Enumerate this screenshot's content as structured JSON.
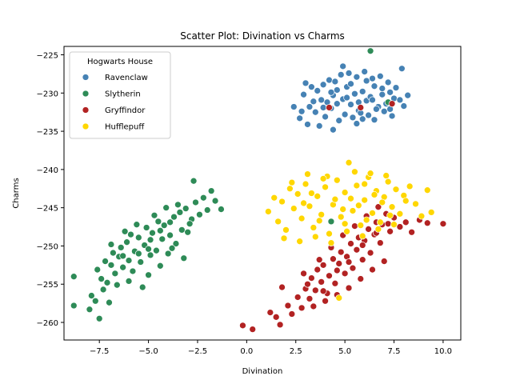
{
  "chart_data": {
    "type": "scatter",
    "title": "Scatter Plot: Divination vs Charms",
    "xlabel": "Divination",
    "ylabel": "Charms",
    "xlim": [
      -9.3,
      10.9
    ],
    "ylim": [
      -262.3,
      -223.9
    ],
    "xticks": [
      -7.5,
      -5.0,
      -2.5,
      0.0,
      2.5,
      5.0,
      7.5,
      10.0
    ],
    "xtick_labels": [
      "−7.5",
      "−5.0",
      "−2.5",
      "0.0",
      "2.5",
      "5.0",
      "7.5",
      "10.0"
    ],
    "yticks": [
      -225,
      -230,
      -235,
      -240,
      -245,
      -250,
      -255,
      -260
    ],
    "ytick_labels": [
      "−225",
      "−230",
      "−235",
      "−240",
      "−245",
      "−250",
      "−255",
      "−260"
    ],
    "grid": false,
    "legend": {
      "title": "Hogwarts House",
      "placement": "top-left"
    },
    "series": [
      {
        "name": "Ravenclaw",
        "color": "#4682b4",
        "points": [
          [
            3.2,
            -231.8
          ],
          [
            3.5,
            -232.5
          ],
          [
            3.8,
            -230.9
          ],
          [
            4.1,
            -231.2
          ],
          [
            4.4,
            -230.3
          ],
          [
            4.6,
            -229.6
          ],
          [
            4.9,
            -230.8
          ],
          [
            5.1,
            -229.2
          ],
          [
            5.3,
            -231.5
          ],
          [
            5.5,
            -230.1
          ],
          [
            5.7,
            -232.3
          ],
          [
            5.9,
            -229.8
          ],
          [
            6.1,
            -231.0
          ],
          [
            6.3,
            -230.5
          ],
          [
            6.5,
            -229.1
          ],
          [
            6.7,
            -231.8
          ],
          [
            6.9,
            -230.2
          ],
          [
            7.1,
            -231.4
          ],
          [
            7.3,
            -229.9
          ],
          [
            7.5,
            -230.7
          ],
          [
            3.6,
            -229.7
          ],
          [
            4.0,
            -233.1
          ],
          [
            4.3,
            -232.0
          ],
          [
            4.7,
            -233.6
          ],
          [
            5.0,
            -232.8
          ],
          [
            5.4,
            -233.2
          ],
          [
            5.8,
            -232.6
          ],
          [
            6.2,
            -232.9
          ],
          [
            6.6,
            -232.1
          ],
          [
            7.0,
            -232.4
          ],
          [
            2.4,
            -231.8
          ],
          [
            2.7,
            -233.3
          ],
          [
            2.9,
            -230.2
          ],
          [
            3.0,
            -228.7
          ],
          [
            3.3,
            -229.2
          ],
          [
            3.9,
            -228.9
          ],
          [
            4.2,
            -228.3
          ],
          [
            4.5,
            -228.5
          ],
          [
            4.8,
            -227.6
          ],
          [
            5.2,
            -227.4
          ],
          [
            5.6,
            -227.9
          ],
          [
            6.0,
            -227.2
          ],
          [
            6.4,
            -228.1
          ],
          [
            6.8,
            -227.8
          ],
          [
            7.2,
            -228.6
          ],
          [
            7.6,
            -229.3
          ],
          [
            7.8,
            -230.9
          ],
          [
            8.0,
            -231.7
          ],
          [
            8.2,
            -230.3
          ],
          [
            7.9,
            -226.8
          ],
          [
            3.1,
            -234.1
          ],
          [
            3.7,
            -234.3
          ],
          [
            4.4,
            -234.8
          ],
          [
            5.6,
            -234.0
          ],
          [
            6.5,
            -233.5
          ],
          [
            7.4,
            -233.0
          ],
          [
            2.8,
            -232.4
          ],
          [
            4.9,
            -226.5
          ],
          [
            5.3,
            -228.8
          ],
          [
            6.1,
            -228.4
          ],
          [
            3.4,
            -231.1
          ],
          [
            3.9,
            -231.9
          ],
          [
            4.6,
            -231.4
          ],
          [
            5.1,
            -230.6
          ],
          [
            5.7,
            -231.2
          ],
          [
            6.4,
            -230.9
          ],
          [
            6.9,
            -229.4
          ],
          [
            7.3,
            -232.1
          ],
          [
            4.3,
            -229.9
          ],
          [
            5.9,
            -233.4
          ]
        ]
      },
      {
        "name": "Slytherin",
        "color": "#2e8b57",
        "points": [
          [
            -8.8,
            -254.0
          ],
          [
            -8.8,
            -257.8
          ],
          [
            -8.0,
            -258.3
          ],
          [
            -7.9,
            -256.5
          ],
          [
            -7.7,
            -257.2
          ],
          [
            -7.5,
            -259.5
          ],
          [
            -7.3,
            -255.7
          ],
          [
            -7.1,
            -254.8
          ],
          [
            -7.0,
            -257.4
          ],
          [
            -6.9,
            -252.5
          ],
          [
            -6.7,
            -253.6
          ],
          [
            -6.5,
            -251.4
          ],
          [
            -6.4,
            -250.2
          ],
          [
            -6.3,
            -252.8
          ],
          [
            -6.1,
            -249.5
          ],
          [
            -6.0,
            -251.9
          ],
          [
            -5.8,
            -253.3
          ],
          [
            -5.7,
            -250.7
          ],
          [
            -5.5,
            -248.9
          ],
          [
            -5.4,
            -252.1
          ],
          [
            -5.2,
            -249.9
          ],
          [
            -5.1,
            -247.6
          ],
          [
            -4.9,
            -251.2
          ],
          [
            -4.8,
            -248.3
          ],
          [
            -4.6,
            -250.6
          ],
          [
            -4.5,
            -246.8
          ],
          [
            -4.3,
            -249.1
          ],
          [
            -4.2,
            -247.3
          ],
          [
            -4.0,
            -251.0
          ],
          [
            -3.9,
            -248.6
          ],
          [
            -3.7,
            -246.2
          ],
          [
            -3.6,
            -249.7
          ],
          [
            -3.4,
            -245.6
          ],
          [
            -3.3,
            -247.9
          ],
          [
            -3.1,
            -245.1
          ],
          [
            -3.0,
            -248.2
          ],
          [
            -2.8,
            -246.5
          ],
          [
            -2.6,
            -244.3
          ],
          [
            -2.4,
            -245.9
          ],
          [
            -2.2,
            -243.7
          ],
          [
            -2.0,
            -245.3
          ],
          [
            -1.8,
            -242.8
          ],
          [
            -1.6,
            -244.1
          ],
          [
            -1.3,
            -245.2
          ],
          [
            -2.7,
            -241.5
          ],
          [
            -7.6,
            -253.1
          ],
          [
            -7.2,
            -252.0
          ],
          [
            -6.8,
            -250.9
          ],
          [
            -6.2,
            -248.1
          ],
          [
            -5.6,
            -247.2
          ],
          [
            -5.0,
            -253.8
          ],
          [
            -4.4,
            -252.6
          ],
          [
            -3.8,
            -250.3
          ],
          [
            -3.2,
            -251.6
          ],
          [
            -6.6,
            -255.1
          ],
          [
            -6.0,
            -254.6
          ],
          [
            -5.3,
            -255.4
          ],
          [
            -4.7,
            -246.0
          ],
          [
            -4.1,
            -245.0
          ],
          [
            -3.5,
            -244.6
          ],
          [
            -7.4,
            -254.3
          ],
          [
            -6.9,
            -249.8
          ],
          [
            -5.9,
            -248.5
          ],
          [
            -5.5,
            -251.0
          ],
          [
            -4.9,
            -249.2
          ],
          [
            -4.4,
            -248.0
          ],
          [
            -3.9,
            -246.9
          ],
          [
            -2.9,
            -247.1
          ],
          [
            -6.3,
            -251.3
          ],
          [
            -5.0,
            -250.4
          ],
          [
            4.3,
            -246.8
          ],
          [
            6.3,
            -224.5
          ],
          [
            7.2,
            -231.2
          ]
        ]
      },
      {
        "name": "Gryffindor",
        "color": "#b22222",
        "points": [
          [
            -0.2,
            -260.4
          ],
          [
            0.3,
            -260.9
          ],
          [
            1.2,
            -258.7
          ],
          [
            1.5,
            -259.3
          ],
          [
            1.7,
            -260.3
          ],
          [
            1.8,
            -255.4
          ],
          [
            2.1,
            -257.8
          ],
          [
            2.3,
            -258.9
          ],
          [
            2.6,
            -256.7
          ],
          [
            2.8,
            -258.1
          ],
          [
            3.0,
            -255.6
          ],
          [
            3.2,
            -256.9
          ],
          [
            3.3,
            -254.2
          ],
          [
            3.5,
            -255.8
          ],
          [
            3.6,
            -253.1
          ],
          [
            3.8,
            -254.7
          ],
          [
            3.9,
            -252.5
          ],
          [
            4.1,
            -256.2
          ],
          [
            4.2,
            -253.9
          ],
          [
            4.4,
            -251.7
          ],
          [
            4.5,
            -254.9
          ],
          [
            4.7,
            -252.3
          ],
          [
            4.8,
            -250.8
          ],
          [
            5.0,
            -253.6
          ],
          [
            5.1,
            -251.4
          ],
          [
            5.3,
            -249.7
          ],
          [
            5.4,
            -252.9
          ],
          [
            5.6,
            -250.5
          ],
          [
            5.7,
            -248.9
          ],
          [
            5.9,
            -251.8
          ],
          [
            6.0,
            -249.3
          ],
          [
            6.2,
            -247.8
          ],
          [
            6.3,
            -250.9
          ],
          [
            6.5,
            -248.5
          ],
          [
            6.6,
            -246.9
          ],
          [
            6.8,
            -249.6
          ],
          [
            6.9,
            -247.2
          ],
          [
            7.1,
            -245.8
          ],
          [
            7.3,
            -248.1
          ],
          [
            7.5,
            -246.3
          ],
          [
            7.8,
            -247.5
          ],
          [
            8.1,
            -246.9
          ],
          [
            8.4,
            -248.2
          ],
          [
            8.8,
            -246.6
          ],
          [
            9.2,
            -247.0
          ],
          [
            10.0,
            -247.1
          ],
          [
            7.0,
            -252.0
          ],
          [
            6.4,
            -253.1
          ],
          [
            5.8,
            -254.3
          ],
          [
            5.2,
            -255.5
          ],
          [
            4.6,
            -256.4
          ],
          [
            4.0,
            -257.2
          ],
          [
            3.4,
            -257.9
          ],
          [
            2.9,
            -253.6
          ],
          [
            3.7,
            -251.8
          ],
          [
            4.3,
            -250.2
          ],
          [
            4.9,
            -248.6
          ],
          [
            5.5,
            -247.4
          ],
          [
            6.1,
            -246.1
          ],
          [
            6.7,
            -244.9
          ],
          [
            4.2,
            -231.9
          ],
          [
            5.8,
            -231.9
          ],
          [
            7.4,
            -231.4
          ],
          [
            3.1,
            -255.0
          ],
          [
            3.9,
            -255.9
          ],
          [
            4.6,
            -253.2
          ],
          [
            5.2,
            -252.1
          ],
          [
            5.9,
            -249.9
          ],
          [
            6.6,
            -248.3
          ],
          [
            7.2,
            -247.1
          ]
        ]
      },
      {
        "name": "Hufflepuff",
        "color": "#ffd700",
        "points": [
          [
            1.1,
            -245.5
          ],
          [
            1.4,
            -243.7
          ],
          [
            1.6,
            -246.8
          ],
          [
            1.8,
            -244.2
          ],
          [
            2.0,
            -247.9
          ],
          [
            2.2,
            -242.5
          ],
          [
            2.4,
            -245.1
          ],
          [
            2.6,
            -243.2
          ],
          [
            2.8,
            -246.4
          ],
          [
            3.0,
            -241.9
          ],
          [
            3.2,
            -244.8
          ],
          [
            3.4,
            -247.6
          ],
          [
            3.6,
            -243.5
          ],
          [
            3.8,
            -245.9
          ],
          [
            4.0,
            -242.3
          ],
          [
            4.2,
            -248.4
          ],
          [
            4.4,
            -244.6
          ],
          [
            4.6,
            -241.4
          ],
          [
            4.8,
            -246.2
          ],
          [
            5.0,
            -243.0
          ],
          [
            5.2,
            -239.1
          ],
          [
            5.4,
            -245.4
          ],
          [
            5.6,
            -242.1
          ],
          [
            5.8,
            -247.3
          ],
          [
            6.0,
            -244.0
          ],
          [
            6.2,
            -241.0
          ],
          [
            6.4,
            -245.7
          ],
          [
            6.6,
            -242.8
          ],
          [
            6.8,
            -246.9
          ],
          [
            7.0,
            -243.6
          ],
          [
            7.2,
            -241.6
          ],
          [
            7.4,
            -244.9
          ],
          [
            7.6,
            -242.6
          ],
          [
            7.8,
            -245.8
          ],
          [
            8.0,
            -243.4
          ],
          [
            8.3,
            -242.2
          ],
          [
            8.6,
            -244.5
          ],
          [
            8.9,
            -246.1
          ],
          [
            9.2,
            -242.7
          ],
          [
            9.4,
            -245.6
          ],
          [
            1.9,
            -249.0
          ],
          [
            2.7,
            -249.4
          ],
          [
            3.5,
            -248.8
          ],
          [
            4.3,
            -249.6
          ],
          [
            5.1,
            -248.1
          ],
          [
            5.9,
            -248.7
          ],
          [
            6.7,
            -247.8
          ],
          [
            7.5,
            -247.2
          ],
          [
            3.1,
            -240.6
          ],
          [
            4.1,
            -240.9
          ],
          [
            5.5,
            -240.3
          ],
          [
            6.3,
            -240.5
          ],
          [
            7.1,
            -240.8
          ],
          [
            2.3,
            -241.7
          ],
          [
            4.7,
            -256.8
          ],
          [
            4.9,
            -245.2
          ],
          [
            5.3,
            -243.8
          ],
          [
            5.7,
            -244.7
          ],
          [
            6.1,
            -246.6
          ],
          [
            6.5,
            -243.3
          ],
          [
            3.3,
            -243.1
          ],
          [
            3.7,
            -246.7
          ],
          [
            4.5,
            -243.9
          ],
          [
            5.0,
            -247.1
          ],
          [
            6.9,
            -244.3
          ],
          [
            7.3,
            -246.0
          ],
          [
            8.1,
            -244.1
          ],
          [
            2.9,
            -244.4
          ],
          [
            3.9,
            -241.2
          ],
          [
            6.0,
            -241.9
          ]
        ]
      }
    ]
  }
}
